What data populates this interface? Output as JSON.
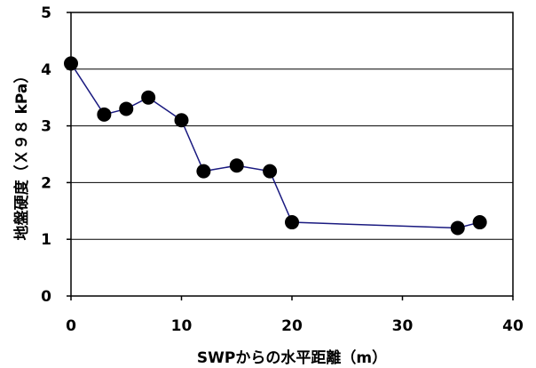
{
  "chart_data": {
    "type": "line",
    "title": "",
    "xlabel": "SWPからの水平距離（m）",
    "ylabel": "地盤硬度（Ｘ９８ kPa）",
    "xlim": [
      0,
      40
    ],
    "ylim": [
      0,
      5
    ],
    "x_ticks": [
      "0",
      "10",
      "20",
      "30",
      "40"
    ],
    "y_ticks": [
      "0",
      "1",
      "2",
      "3",
      "4",
      "5"
    ],
    "grid": "horizontal",
    "legend": "none",
    "line_color": "#1a1a80",
    "marker_color": "#000000",
    "series": [
      {
        "x": [
          0,
          3,
          5,
          7,
          10,
          12,
          15,
          18,
          20,
          35,
          37
        ],
        "y": [
          4.1,
          3.2,
          3.3,
          3.5,
          3.1,
          2.2,
          2.3,
          2.2,
          1.3,
          1.2,
          1.3
        ]
      }
    ]
  }
}
